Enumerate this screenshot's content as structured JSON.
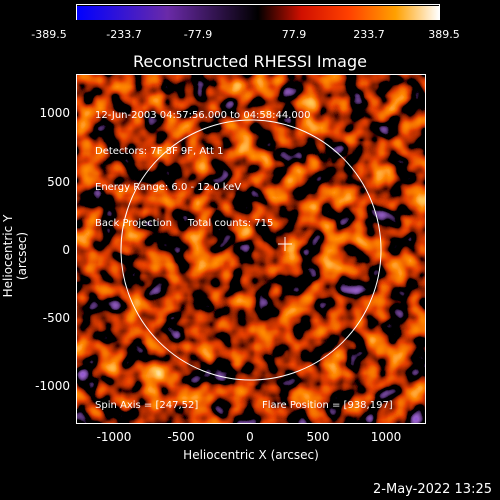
{
  "colorbar": {
    "ticks": [
      "-389.5",
      "-233.7",
      "-77.9",
      "77.9",
      "233.7",
      "389.5"
    ],
    "colors": [
      "#0000ff",
      "#6a2aa8",
      "#000000",
      "#ff2000",
      "#ff8a00",
      "#ffffff"
    ]
  },
  "title": "Reconstructed RHESSI Image",
  "info": {
    "line1": "12-Jun-2003 04:57:56.000 to 04:58:44.000",
    "line2": "Detectors: 7F 8F 9F, Att 1",
    "line3": "Energy Range: 6.0 - 12.0 keV",
    "line4": "Back Projection     Total counts: 715"
  },
  "spin_axis": "Spin Axis = [247,52]",
  "flare_position": "Flare Position = [938,197]",
  "axes": {
    "xlabel": "Heliocentric X (arcsec)",
    "ylabel": "Heliocentric Y (arcsec)",
    "xticks": [
      "-1000",
      "-500",
      "0",
      "500",
      "1000"
    ],
    "yticks": [
      "1000",
      "500",
      "0",
      "-500",
      "-1000"
    ]
  },
  "timestamp": "2-May-2022 13:25"
}
